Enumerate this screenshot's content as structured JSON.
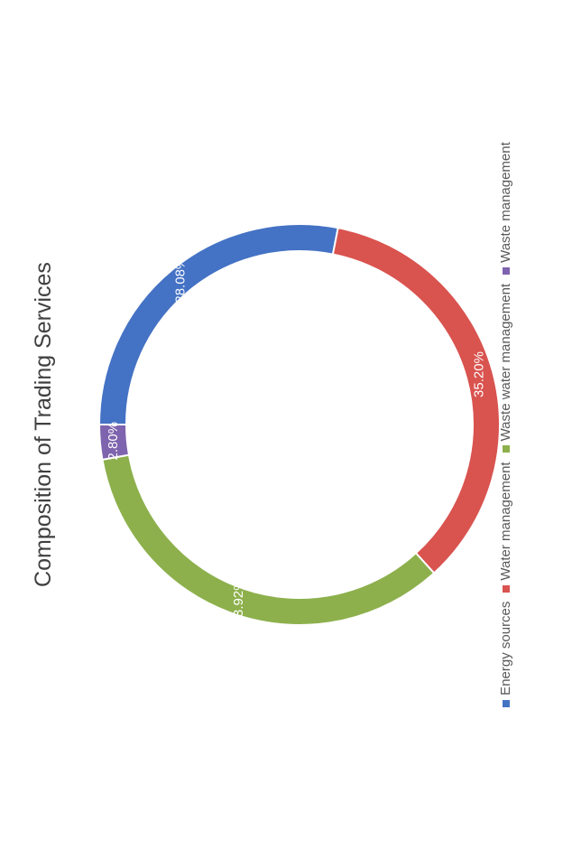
{
  "chart_data": {
    "type": "pie",
    "title": "Composition of Trading Services",
    "categories": [
      "Energy sources",
      "Water management",
      "Waste water management",
      "Waste management"
    ],
    "values": [
      28.08,
      35.2,
      33.92,
      2.8
    ],
    "labels": [
      "28.08%",
      "35.20%",
      "33.92%",
      "2.80%"
    ],
    "colors": [
      "#4472C4",
      "#D9534F",
      "#8DB04C",
      "#7E63AE"
    ],
    "legend": "bottom"
  }
}
